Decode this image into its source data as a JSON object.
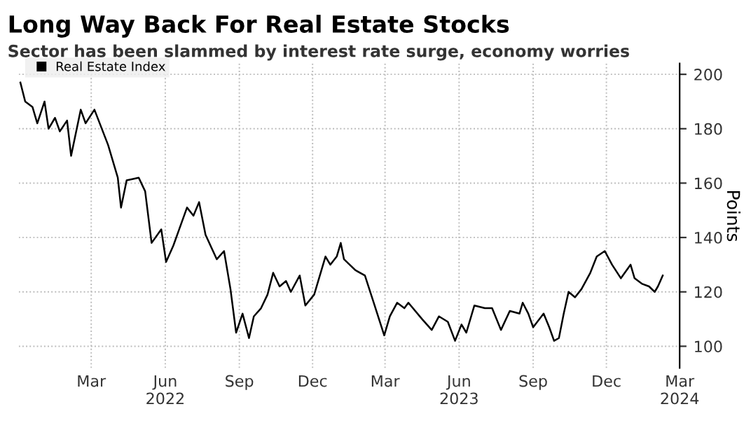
{
  "chart_data": {
    "type": "line",
    "title": "Long Way Back For Real Estate Stocks",
    "subtitle": "Sector has been slammed by interest rate surge, economy worries",
    "ylabel": "Points",
    "x": [
      "2021-12-03",
      "2021-12-09",
      "2021-12-18",
      "2021-12-24",
      "2022-01-02",
      "2022-01-07",
      "2022-01-15",
      "2022-01-21",
      "2022-01-30",
      "2022-02-04",
      "2022-02-16",
      "2022-02-22",
      "2022-03-05",
      "2022-03-22",
      "2022-04-03",
      "2022-04-07",
      "2022-04-14",
      "2022-04-29",
      "2022-05-07",
      "2022-05-15",
      "2022-05-27",
      "2022-06-02",
      "2022-06-11",
      "2022-06-28",
      "2022-07-06",
      "2022-07-13",
      "2022-07-21",
      "2022-08-04",
      "2022-08-13",
      "2022-08-21",
      "2022-08-28",
      "2022-09-05",
      "2022-09-13",
      "2022-09-19",
      "2022-09-28",
      "2022-10-06",
      "2022-10-13",
      "2022-10-21",
      "2022-10-29",
      "2022-11-04",
      "2022-11-15",
      "2022-11-22",
      "2022-12-03",
      "2022-12-17",
      "2022-12-23",
      "2022-12-31",
      "2023-01-05",
      "2023-01-09",
      "2023-01-23",
      "2023-02-04",
      "2023-02-15",
      "2023-02-28",
      "2023-03-07",
      "2023-03-16",
      "2023-03-25",
      "2023-03-30",
      "2023-04-16",
      "2023-04-28",
      "2023-05-07",
      "2023-05-18",
      "2023-05-27",
      "2023-06-04",
      "2023-06-10",
      "2023-06-20",
      "2023-07-03",
      "2023-07-12",
      "2023-07-23",
      "2023-08-03",
      "2023-08-15",
      "2023-08-19",
      "2023-08-26",
      "2023-09-01",
      "2023-09-14",
      "2023-09-21",
      "2023-09-27",
      "2023-10-03",
      "2023-10-09",
      "2023-10-15",
      "2023-10-23",
      "2023-10-31",
      "2023-11-11",
      "2023-11-19",
      "2023-11-29",
      "2023-12-08",
      "2023-12-19",
      "2023-12-31",
      "2024-01-05",
      "2024-01-14",
      "2024-01-23",
      "2024-01-30",
      "2024-02-03",
      "2024-02-09"
    ],
    "series": [
      {
        "name": "Real Estate Index",
        "color": "#000000",
        "values": [
          197,
          190,
          188,
          182,
          190,
          180,
          184,
          179,
          183,
          170,
          187,
          182,
          187,
          174,
          162,
          151,
          161,
          162,
          157,
          138,
          143,
          131,
          137,
          151,
          148,
          153,
          141,
          132,
          135,
          121,
          105,
          112,
          103,
          111,
          114,
          119,
          127,
          122,
          124,
          120,
          126,
          115,
          119,
          133,
          130,
          133,
          138,
          132,
          128,
          126,
          116,
          104,
          111,
          116,
          114,
          116,
          110,
          106,
          111,
          109,
          102,
          108,
          105,
          115,
          114,
          114,
          106,
          113,
          112,
          116,
          112,
          107,
          112,
          107,
          102,
          103,
          112,
          120,
          118,
          121,
          127,
          133,
          135,
          130,
          125,
          130,
          125,
          123,
          122,
          120,
          122,
          126
        ]
      }
    ],
    "xlim": [
      "2021-12-01",
      "2024-03-01"
    ],
    "ylim": [
      92,
      204
    ],
    "yticks": [
      100,
      120,
      140,
      160,
      180,
      200
    ],
    "xticks": [
      {
        "value": "2022-03-01",
        "label": "Mar"
      },
      {
        "value": "2022-06-01",
        "label": "Jun\n2022"
      },
      {
        "value": "2022-09-01",
        "label": "Sep"
      },
      {
        "value": "2022-12-01",
        "label": "Dec"
      },
      {
        "value": "2023-03-01",
        "label": "Mar"
      },
      {
        "value": "2023-06-01",
        "label": "Jun\n2023"
      },
      {
        "value": "2023-09-01",
        "label": "Sep"
      },
      {
        "value": "2023-12-01",
        "label": "Dec"
      },
      {
        "value": "2024-03-01",
        "label": "Mar\n2024"
      }
    ],
    "grid": true,
    "legend": "top left",
    "line_style": "solid"
  }
}
